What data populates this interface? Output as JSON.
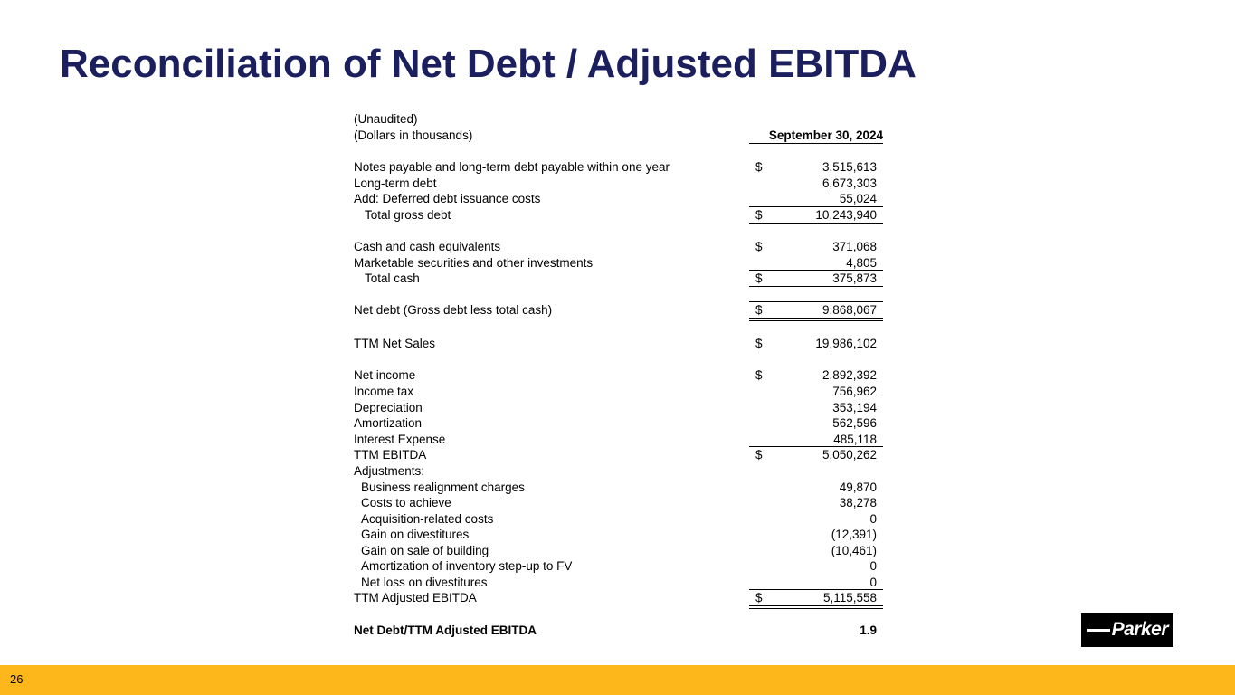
{
  "title": "Reconciliation of Net Debt / Adjusted EBITDA",
  "page_number": "26",
  "logo": "Parker",
  "table": {
    "rows": [
      {
        "label": "(Unaudited)"
      },
      {
        "label": "(Dollars in thousands)",
        "value": "September 30, 2024"
      },
      {
        "label": "Notes payable and long-term debt payable within one year",
        "dollar": "$",
        "value": "3,515,613"
      },
      {
        "label": "Long-term debt",
        "value": "6,673,303"
      },
      {
        "label": "Add: Deferred debt issuance costs",
        "value": "55,024"
      },
      {
        "label": "Total gross debt",
        "dollar": "$",
        "value": "10,243,940"
      },
      {
        "label": "Cash and cash equivalents",
        "dollar": "$",
        "value": "371,068"
      },
      {
        "label": "Marketable securities and other investments",
        "value": "4,805"
      },
      {
        "label": "Total cash",
        "dollar": "$",
        "value": "375,873"
      },
      {
        "label": "Net debt (Gross debt less total cash)",
        "dollar": "$",
        "value": "9,868,067"
      },
      {
        "label": "TTM Net Sales",
        "dollar": "$",
        "value": "19,986,102"
      },
      {
        "label": "Net income",
        "dollar": "$",
        "value": "2,892,392"
      },
      {
        "label": "Income tax",
        "value": "756,962"
      },
      {
        "label": "Depreciation",
        "value": "353,194"
      },
      {
        "label": "Amortization",
        "value": "562,596"
      },
      {
        "label": "Interest Expense",
        "value": "485,118"
      },
      {
        "label": "TTM EBITDA",
        "dollar": "$",
        "value": "5,050,262"
      },
      {
        "label": "Adjustments:"
      },
      {
        "label": "Business realignment charges",
        "value": "49,870"
      },
      {
        "label": "Costs to achieve",
        "value": "38,278"
      },
      {
        "label": "Acquisition-related costs",
        "value": "0"
      },
      {
        "label": "Gain on divestitures",
        "value": "(12,391)"
      },
      {
        "label": "Gain on sale of building",
        "value": "(10,461)"
      },
      {
        "label": "Amortization of inventory step-up to FV",
        "value": "0"
      },
      {
        "label": "Net loss on divestitures",
        "value": "0"
      },
      {
        "label": "TTM Adjusted EBITDA",
        "dollar": "$",
        "value": "5,115,558"
      },
      {
        "label": "Net Debt/TTM Adjusted EBITDA",
        "value": "1.9"
      }
    ]
  }
}
